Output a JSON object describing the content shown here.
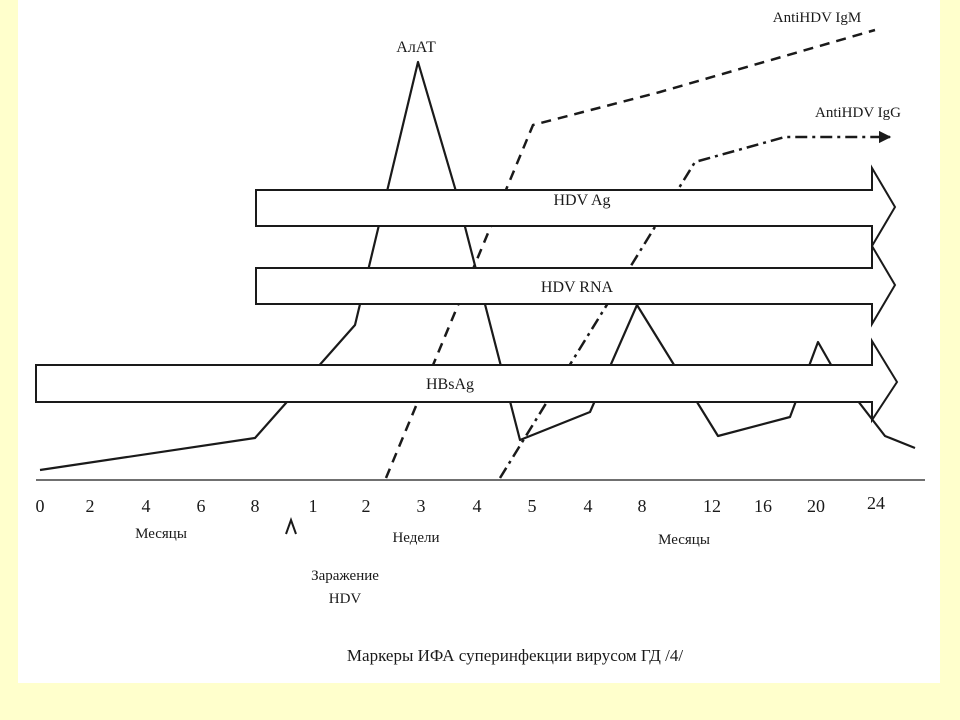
{
  "colors": {
    "page_background": "#ffffcc",
    "figure_background": "#ffffff",
    "ink": "#1a1a1a"
  },
  "diagram": {
    "curve_labels": {
      "alat": "АлАТ",
      "anti_igm": "AntiHDV IgM",
      "anti_igg": "AntiHDV IgG"
    },
    "bar_labels": {
      "hdv_ag": "HDV Ag",
      "hdv_rna": "HDV RNA",
      "hbsag": "HBsAg"
    },
    "axis_ticks": [
      "0",
      "2",
      "4",
      "6",
      "8",
      "1",
      "2",
      "3",
      "4",
      "5",
      "4",
      "8",
      "12",
      "16",
      "20",
      "24"
    ],
    "axis_unit_labels": {
      "months_left": "Месяцы",
      "weeks": "Недели",
      "months_right": "Месяцы"
    },
    "infection_marker": {
      "line1": "Заражение",
      "line2": "HDV"
    },
    "caption": "Маркеры ИФА суперинфекции вирусом ГД /4/"
  }
}
